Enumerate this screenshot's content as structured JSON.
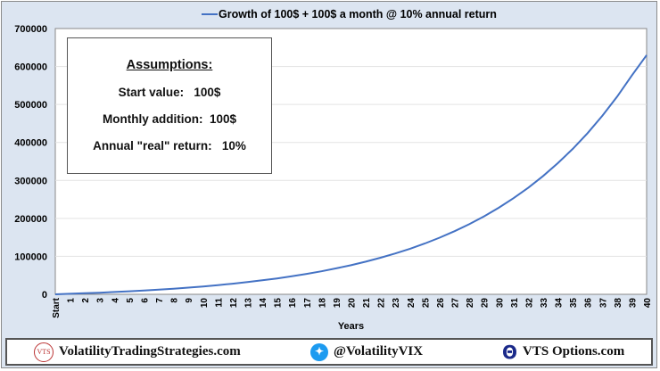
{
  "chart_data": {
    "type": "line",
    "title": "",
    "legend": "Growth of 100$ + 100$ a month @ 10% annual return",
    "legend_position": "top",
    "xlabel": "Years",
    "ylabel": "",
    "ylim": [
      0,
      700000
    ],
    "yticks": [
      "0",
      "100000",
      "200000",
      "300000",
      "400000",
      "500000",
      "600000",
      "700000"
    ],
    "categories": [
      "Start",
      "1",
      "2",
      "3",
      "4",
      "5",
      "6",
      "7",
      "8",
      "9",
      "10",
      "11",
      "12",
      "13",
      "14",
      "15",
      "16",
      "17",
      "18",
      "19",
      "20",
      "21",
      "22",
      "23",
      "24",
      "25",
      "26",
      "27",
      "28",
      "29",
      "30",
      "31",
      "32",
      "33",
      "34",
      "35",
      "36",
      "37",
      "38",
      "39",
      "40"
    ],
    "series": [
      {
        "name": "Growth of 100$ + 100$ a month @ 10% annual return",
        "color": "#4472c4",
        "values": [
          100,
          1367,
          2767,
          4313,
          6021,
          7908,
          9993,
          12296,
          14840,
          17650,
          20755,
          24185,
          27974,
          32160,
          36784,
          41893,
          47536,
          53770,
          60657,
          68265,
          76670,
          85955,
          96212,
          107543,
          120062,
          133890,
          149167,
          166043,
          184686,
          205282,
          228034,
          253169,
          280936,
          311610,
          345496,
          382931,
          424285,
          469970,
          520438,
          576191,
          630000
        ]
      }
    ],
    "grid": true
  },
  "assumptions": {
    "heading": "Assumptions:",
    "start": "Start value:   100$",
    "monthly": "Monthly addition:  100$",
    "return": "Annual \"real\" return:   10%"
  },
  "footer": {
    "site": "VolatilityTradingStrategies.com",
    "site_logo": "VTS",
    "twitter": "@VolatilityVIX",
    "options": "VTS Options.com"
  }
}
